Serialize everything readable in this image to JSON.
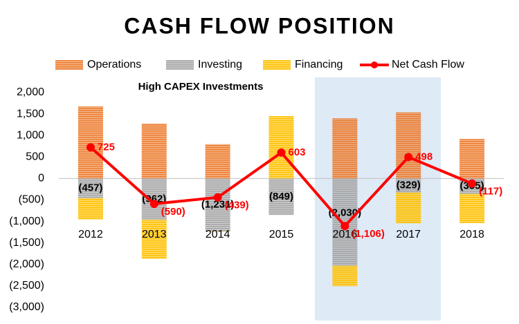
{
  "chart_data": {
    "type": "bar",
    "title": "CASH FLOW POSITION",
    "annotation": "High CAPEX Investments",
    "categories": [
      "2012",
      "2013",
      "2014",
      "2015",
      "2016",
      "2017",
      "2018"
    ],
    "stacked": true,
    "series": [
      {
        "name": "Operations",
        "type": "bar",
        "color": "#ED7D31",
        "values": [
          1680,
          1280,
          800,
          0,
          1400,
          1540,
          920
        ]
      },
      {
        "name": "Investing",
        "type": "bar",
        "color": "#A5A5A5",
        "values": [
          -457,
          -962,
          -1231,
          -849,
          -2030,
          -329,
          -355
        ],
        "value_labels": [
          "(457)",
          "(962)",
          "(1,231)",
          "(849)",
          "(2,030)",
          "(329)",
          "(355)"
        ]
      },
      {
        "name": "Financing",
        "type": "bar",
        "color": "#FFC000",
        "values": [
          -498,
          -908,
          -8,
          1452,
          -476,
          -713,
          -682
        ]
      },
      {
        "name": "Net Cash Flow",
        "type": "line",
        "color": "#FF0000",
        "values": [
          725,
          -590,
          -439,
          603,
          -1106,
          498,
          -117
        ],
        "value_labels": [
          "725",
          "(590)",
          "(439)",
          "603",
          "(1,106)",
          "498",
          "(117)"
        ]
      }
    ],
    "ylim": [
      -3000,
      2000
    ],
    "yticks": [
      {
        "value": 2000,
        "label": "2,000"
      },
      {
        "value": 1500,
        "label": "1,500"
      },
      {
        "value": 1000,
        "label": "1,000"
      },
      500,
      0,
      {
        "value": -500,
        "label": "(500)"
      },
      {
        "value": -1000,
        "label": "(1,000)"
      },
      {
        "value": -1500,
        "label": "(1,500)"
      },
      {
        "value": -2000,
        "label": "(2,000)"
      },
      {
        "value": -2500,
        "label": "(2,500)"
      },
      {
        "value": -3000,
        "label": "(3,000)"
      }
    ],
    "grid": false,
    "legend": "top"
  }
}
